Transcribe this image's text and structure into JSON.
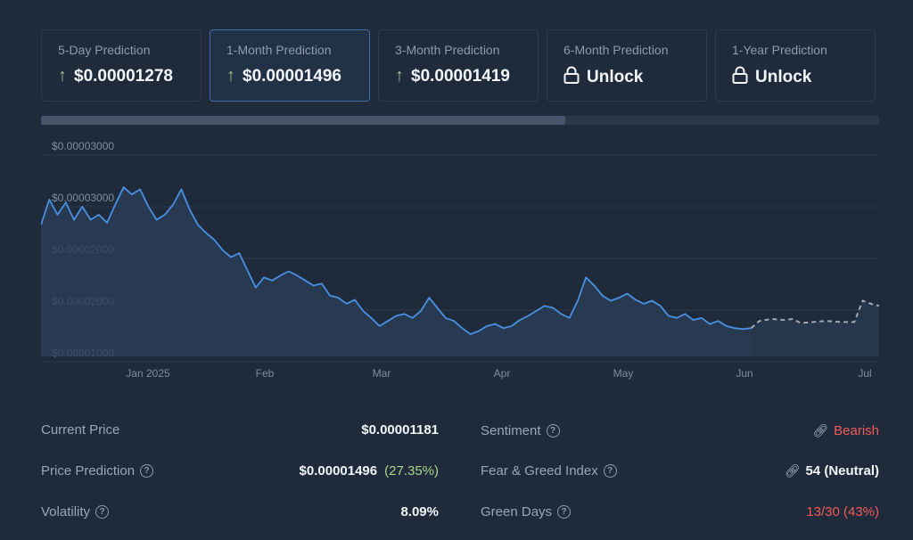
{
  "predictions": [
    {
      "label": "5-Day Prediction",
      "value": "$0.00001278",
      "icon": "up-arrow-icon",
      "active": false
    },
    {
      "label": "1-Month Prediction",
      "value": "$0.00001496",
      "icon": "up-arrow-icon",
      "active": true
    },
    {
      "label": "3-Month Prediction",
      "value": "$0.00001419",
      "icon": "up-arrow-icon",
      "active": false
    },
    {
      "label": "6-Month Prediction",
      "value": "Unlock",
      "icon": "lock-icon",
      "active": false
    },
    {
      "label": "1-Year Prediction",
      "value": "Unlock",
      "icon": "lock-icon",
      "active": false
    }
  ],
  "scrollbar": {
    "position_percent": 62.5
  },
  "chart_data": {
    "type": "line",
    "y_tick_labels": [
      "$0.00003000",
      "$0.00003000",
      "$0.00002000",
      "$0.00002000",
      "$0.00001000"
    ],
    "x_tick_labels": [
      "Jan 2025",
      "Feb",
      "Mar",
      "Apr",
      "May",
      "Jun",
      "Jul"
    ],
    "y_range": [
      9e-06,
      3.1e-05
    ],
    "x_range": [
      "2024-12-18",
      "2025-07-09"
    ],
    "series": [
      {
        "style": "solid",
        "color": "#4a90e2",
        "points": [
          [
            "2024-12-18",
            2.2e-05
          ],
          [
            "2024-12-20",
            2.45e-05
          ],
          [
            "2024-12-22",
            2.3e-05
          ],
          [
            "2024-12-24",
            2.42e-05
          ],
          [
            "2024-12-26",
            2.25e-05
          ],
          [
            "2024-12-28",
            2.38e-05
          ],
          [
            "2024-12-30",
            2.25e-05
          ],
          [
            "2025-01-01",
            2.3e-05
          ],
          [
            "2025-01-03",
            2.22e-05
          ],
          [
            "2025-01-05",
            2.4e-05
          ],
          [
            "2025-01-07",
            2.57e-05
          ],
          [
            "2025-01-09",
            2.5e-05
          ],
          [
            "2025-01-11",
            2.55e-05
          ],
          [
            "2025-01-13",
            2.38e-05
          ],
          [
            "2025-01-15",
            2.25e-05
          ],
          [
            "2025-01-17",
            2.3e-05
          ],
          [
            "2025-01-19",
            2.4e-05
          ],
          [
            "2025-01-21",
            2.55e-05
          ],
          [
            "2025-01-23",
            2.35e-05
          ],
          [
            "2025-01-25",
            2.2e-05
          ],
          [
            "2025-01-27",
            2.12e-05
          ],
          [
            "2025-01-29",
            2.05e-05
          ],
          [
            "2025-01-31",
            1.95e-05
          ],
          [
            "2025-02-02",
            1.88e-05
          ],
          [
            "2025-02-04",
            1.92e-05
          ],
          [
            "2025-02-06",
            1.75e-05
          ],
          [
            "2025-02-08",
            1.58e-05
          ],
          [
            "2025-02-10",
            1.68e-05
          ],
          [
            "2025-02-12",
            1.65e-05
          ],
          [
            "2025-02-14",
            1.7e-05
          ],
          [
            "2025-02-16",
            1.74e-05
          ],
          [
            "2025-02-18",
            1.7e-05
          ],
          [
            "2025-02-20",
            1.65e-05
          ],
          [
            "2025-02-22",
            1.6e-05
          ],
          [
            "2025-02-24",
            1.62e-05
          ],
          [
            "2025-02-26",
            1.5e-05
          ],
          [
            "2025-02-28",
            1.48e-05
          ],
          [
            "2025-03-02",
            1.42e-05
          ],
          [
            "2025-03-04",
            1.46e-05
          ],
          [
            "2025-03-06",
            1.35e-05
          ],
          [
            "2025-03-08",
            1.28e-05
          ],
          [
            "2025-03-10",
            1.2e-05
          ],
          [
            "2025-03-12",
            1.25e-05
          ],
          [
            "2025-03-14",
            1.3e-05
          ],
          [
            "2025-03-16",
            1.32e-05
          ],
          [
            "2025-03-18",
            1.28e-05
          ],
          [
            "2025-03-20",
            1.35e-05
          ],
          [
            "2025-03-22",
            1.48e-05
          ],
          [
            "2025-03-24",
            1.38e-05
          ],
          [
            "2025-03-26",
            1.28e-05
          ],
          [
            "2025-03-28",
            1.25e-05
          ],
          [
            "2025-03-30",
            1.18e-05
          ],
          [
            "2025-04-01",
            1.12e-05
          ],
          [
            "2025-04-03",
            1.15e-05
          ],
          [
            "2025-04-05",
            1.2e-05
          ],
          [
            "2025-04-07",
            1.22e-05
          ],
          [
            "2025-04-09",
            1.18e-05
          ],
          [
            "2025-04-11",
            1.2e-05
          ],
          [
            "2025-04-13",
            1.26e-05
          ],
          [
            "2025-04-15",
            1.3e-05
          ],
          [
            "2025-04-17",
            1.35e-05
          ],
          [
            "2025-04-19",
            1.4e-05
          ],
          [
            "2025-04-21",
            1.38e-05
          ],
          [
            "2025-04-23",
            1.32e-05
          ],
          [
            "2025-04-25",
            1.28e-05
          ],
          [
            "2025-04-27",
            1.45e-05
          ],
          [
            "2025-04-29",
            1.68e-05
          ],
          [
            "2025-05-01",
            1.6e-05
          ],
          [
            "2025-05-03",
            1.5e-05
          ],
          [
            "2025-05-05",
            1.45e-05
          ],
          [
            "2025-05-07",
            1.48e-05
          ],
          [
            "2025-05-09",
            1.52e-05
          ],
          [
            "2025-05-11",
            1.46e-05
          ],
          [
            "2025-05-13",
            1.42e-05
          ],
          [
            "2025-05-15",
            1.45e-05
          ],
          [
            "2025-05-17",
            1.4e-05
          ],
          [
            "2025-05-19",
            1.3e-05
          ],
          [
            "2025-05-21",
            1.28e-05
          ],
          [
            "2025-05-23",
            1.32e-05
          ],
          [
            "2025-05-25",
            1.26e-05
          ],
          [
            "2025-05-27",
            1.28e-05
          ],
          [
            "2025-05-29",
            1.22e-05
          ],
          [
            "2025-05-31",
            1.25e-05
          ],
          [
            "2025-06-02",
            1.2e-05
          ],
          [
            "2025-06-04",
            1.18e-05
          ],
          [
            "2025-06-06",
            1.17e-05
          ],
          [
            "2025-06-08",
            1.18e-05
          ]
        ]
      },
      {
        "style": "dashed",
        "color": "#a0a8b4",
        "points": [
          [
            "2025-06-08",
            1.18e-05
          ],
          [
            "2025-06-10",
            1.25e-05
          ],
          [
            "2025-06-13",
            1.27e-05
          ],
          [
            "2025-06-16",
            1.26e-05
          ],
          [
            "2025-06-18",
            1.27e-05
          ],
          [
            "2025-06-20",
            1.23e-05
          ],
          [
            "2025-06-23",
            1.24e-05
          ],
          [
            "2025-06-26",
            1.25e-05
          ],
          [
            "2025-06-30",
            1.24e-05
          ],
          [
            "2025-07-03",
            1.24e-05
          ],
          [
            "2025-07-05",
            1.45e-05
          ],
          [
            "2025-07-07",
            1.42e-05
          ],
          [
            "2025-07-09",
            1.4e-05
          ]
        ]
      }
    ],
    "grid": true,
    "area_fill": true
  },
  "stats_left": [
    {
      "label": "Current Price",
      "value": "$0.00001181",
      "extra": "",
      "help": false
    },
    {
      "label": "Price Prediction",
      "value": "$0.00001496",
      "extra": "(27.35%)",
      "help": true
    },
    {
      "label": "Volatility",
      "value": "8.09%",
      "extra": "",
      "help": true
    }
  ],
  "stats_right": [
    {
      "label": "Sentiment",
      "value": "Bearish",
      "help": true,
      "link_icon": true,
      "value_color": "red"
    },
    {
      "label": "Fear & Greed Index",
      "value": "54 (Neutral)",
      "help": true,
      "link_icon": true,
      "value_color": "white"
    },
    {
      "label": "Green Days",
      "value": "13/30 (43%)",
      "help": true,
      "link_icon": false,
      "value_color": "red"
    }
  ],
  "colors": {
    "background": "#1f2b3b",
    "accent": "#4a90e2",
    "positive": "#a6d58d",
    "negative": "#f25a5a"
  }
}
